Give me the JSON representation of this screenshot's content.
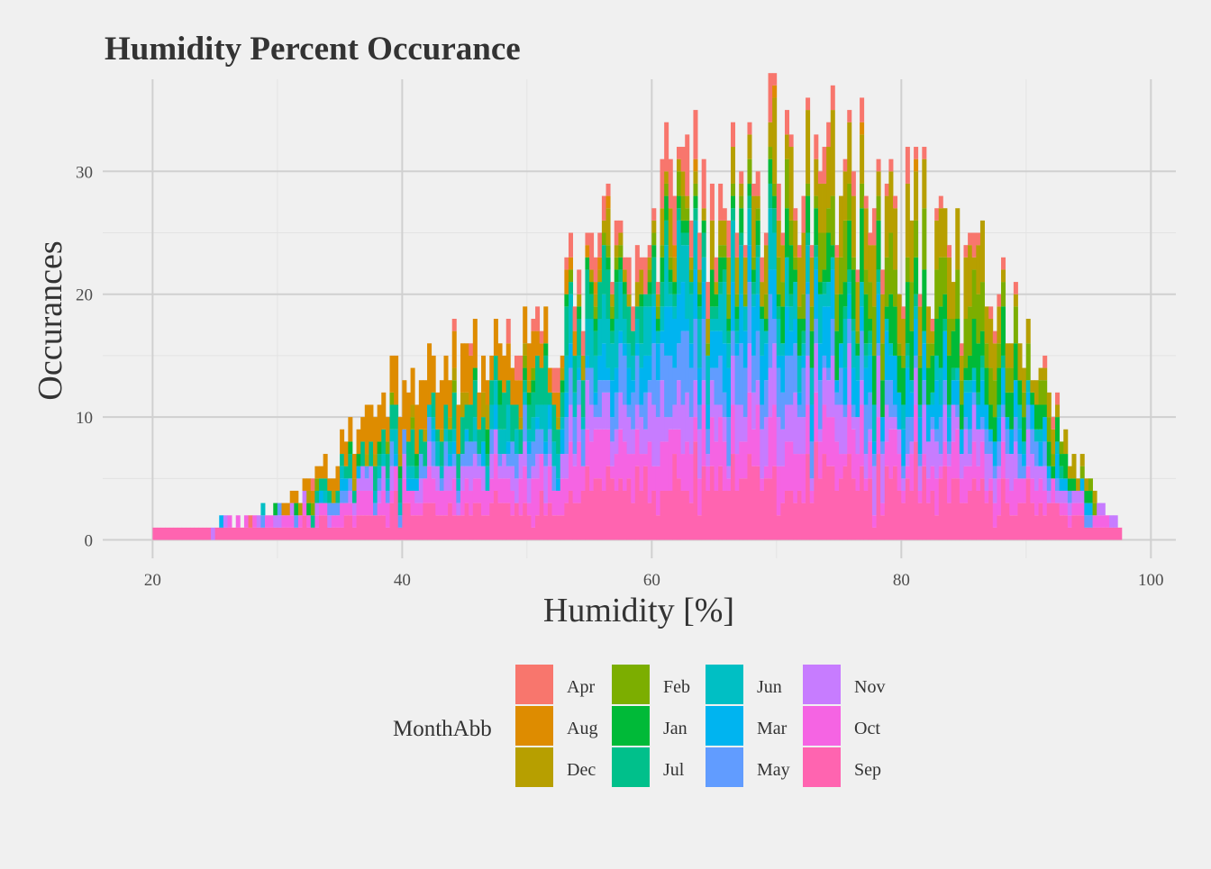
{
  "chart_data": {
    "type": "bar",
    "stacked": true,
    "title": "Humidity Percent Occurance",
    "xlabel": "Humidity [%]",
    "ylabel": "Occurances",
    "xlim": [
      16,
      102
    ],
    "ylim": [
      -1.5,
      37.5
    ],
    "x_ticks": [
      20,
      40,
      60,
      80,
      100
    ],
    "y_ticks": [
      0,
      10,
      20,
      30
    ],
    "grid": true,
    "legend": {
      "title": "MonthAbb",
      "position": "bottom",
      "columns": 4
    },
    "series_names": [
      "Apr",
      "Aug",
      "Dec",
      "Feb",
      "Jan",
      "Jul",
      "Jun",
      "Mar",
      "May",
      "Nov",
      "Oct",
      "Sep"
    ],
    "colors": [
      "#F8766D",
      "#DE8C00",
      "#B79F00",
      "#7CAE00",
      "#00BA38",
      "#00C08B",
      "#00BFC4",
      "#00B4F0",
      "#619CFF",
      "#C77CFF",
      "#F564E3",
      "#FF64B0"
    ],
    "bin_width": 0.3333,
    "bin_start": 20,
    "total_profile_approx": {
      "x": [
        20,
        24,
        28,
        32,
        36,
        40,
        42,
        44,
        48,
        52,
        56,
        60,
        64,
        68,
        70.5,
        72,
        76,
        80,
        84,
        88,
        90,
        92,
        94,
        96,
        97.5
      ],
      "y": [
        1,
        1.5,
        2,
        4,
        8,
        13,
        16,
        14,
        17,
        18,
        24,
        26,
        28,
        29,
        32,
        30,
        30,
        27,
        23,
        20,
        18,
        11,
        7,
        3,
        1
      ]
    }
  }
}
